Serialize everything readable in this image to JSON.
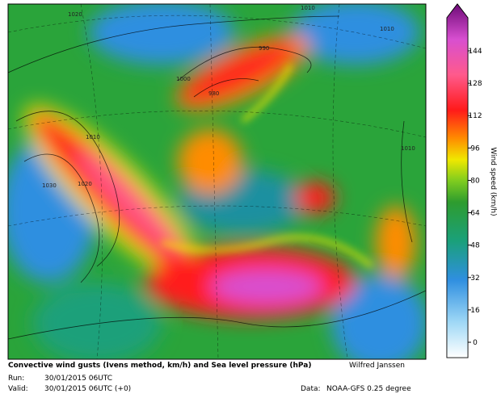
{
  "map": {
    "isobar_labels": [
      "1020",
      "1010",
      "1010",
      "1000",
      "990",
      "980",
      "1010",
      "1020",
      "1030",
      "1010"
    ],
    "colorbar": {
      "label": "Wind speed (km/h)",
      "ticks": [
        0,
        16,
        32,
        48,
        64,
        80,
        96,
        112,
        128,
        144
      ]
    }
  },
  "footer": {
    "title": "Convective wind gusts (Ivens method, km/h) and Sea level pressure (hPa)",
    "author": "Wilfred Janssen",
    "run_label": "Run:",
    "run": "30/01/2015 06UTC",
    "valid_label": "Valid:",
    "valid": "30/01/2015 06UTC (+0)",
    "data_label": "Data:",
    "data": "NOAA-GFS 0.25 degree"
  }
}
